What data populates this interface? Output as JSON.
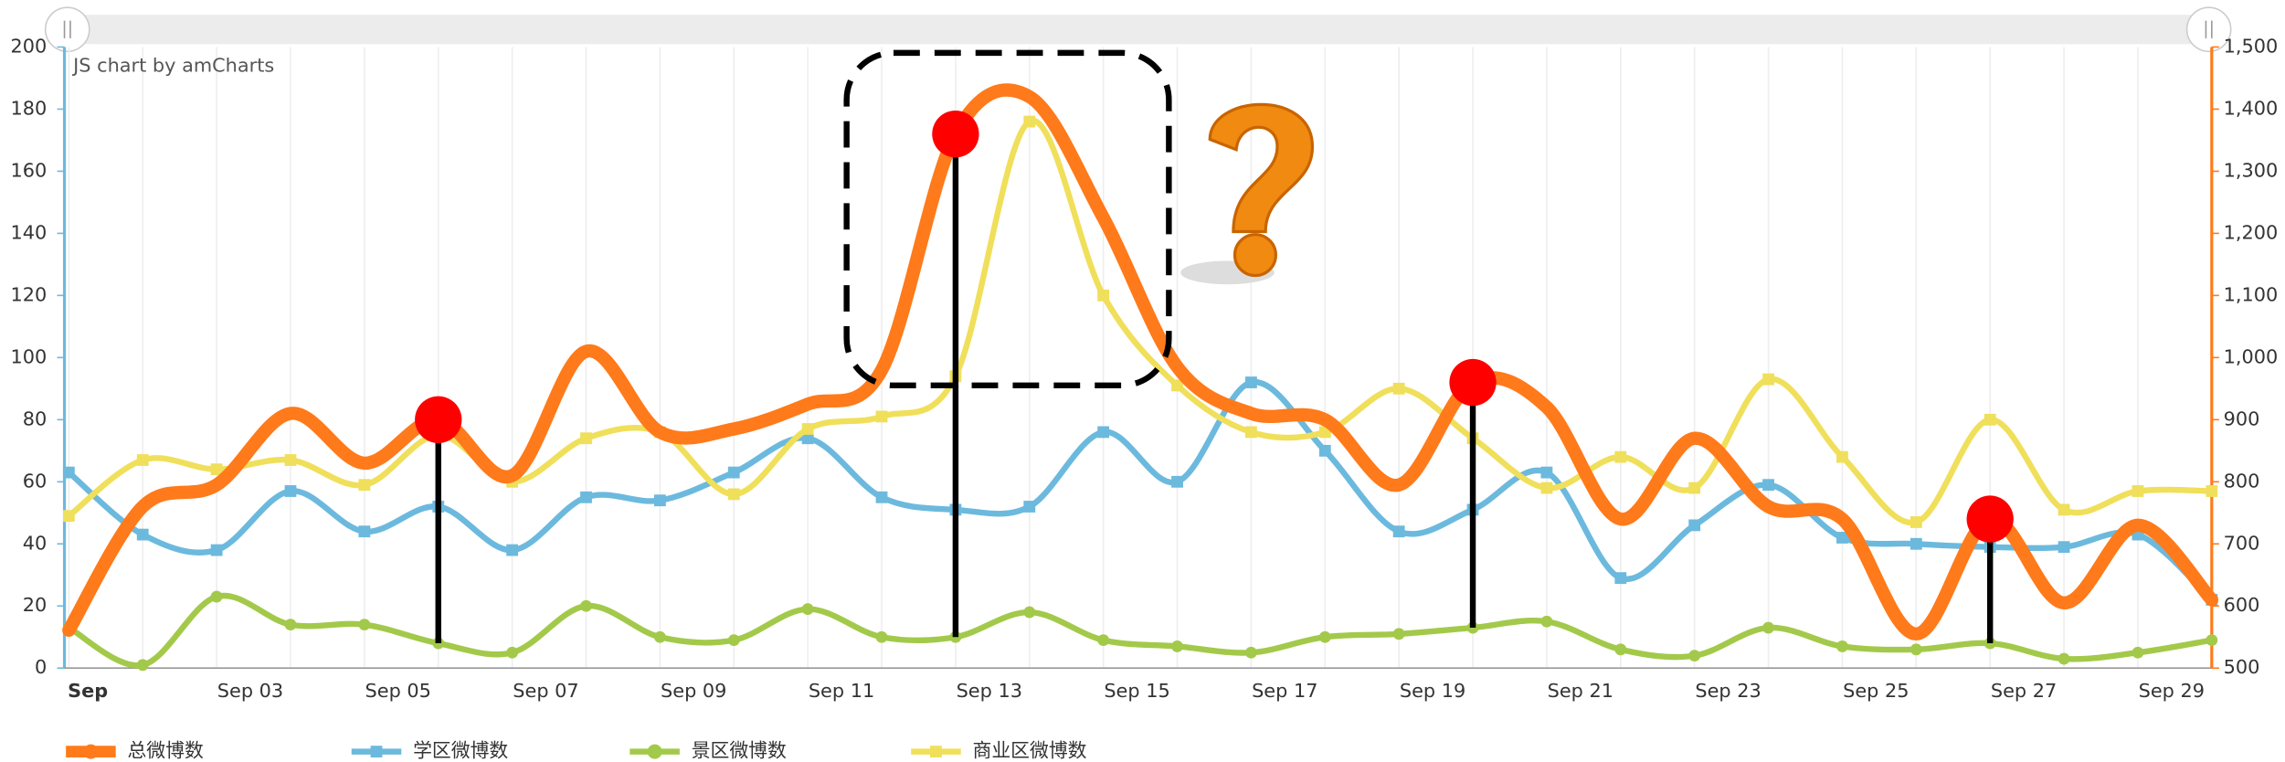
{
  "chart_data": {
    "type": "line",
    "credit": "JS chart by amCharts",
    "categories": [
      "Sep",
      null,
      "Sep 03",
      null,
      "Sep 05",
      null,
      "Sep 07",
      null,
      "Sep 09",
      null,
      "Sep 11",
      null,
      "Sep 13",
      null,
      "Sep 15",
      null,
      "Sep 17",
      null,
      "Sep 19",
      null,
      "Sep 21",
      null,
      "Sep 23",
      null,
      "Sep 25",
      null,
      "Sep 27",
      null,
      "Sep 29",
      null
    ],
    "series": [
      {
        "name": "总微博数",
        "color": "#ff7a1a",
        "axis": "y2",
        "values": [
          561,
          760,
          795,
          910,
          830,
          900,
          810,
          1010,
          880,
          885,
          925,
          980,
          1360,
          1420,
          1225,
          985,
          910,
          900,
          795,
          960,
          920,
          740,
          870,
          760,
          740,
          555,
          740,
          605,
          730,
          610
        ]
      },
      {
        "name": "学区微博数",
        "color": "#6cb9de",
        "values": [
          63,
          43,
          38,
          57,
          44,
          52,
          38,
          55,
          54,
          63,
          74,
          55,
          51,
          52,
          76,
          60,
          92,
          70,
          44,
          51,
          63,
          29,
          46,
          59,
          42,
          40,
          39,
          39,
          43,
          22
        ]
      },
      {
        "name": "景区微博数",
        "color": "#a3c94a",
        "values": [
          13,
          1,
          23,
          14,
          14,
          8,
          5,
          20,
          10,
          9,
          19,
          10,
          10,
          18,
          9,
          7,
          5,
          10,
          11,
          13,
          15,
          6,
          4,
          13,
          7,
          6,
          8,
          3,
          5,
          9
        ]
      },
      {
        "name": "商业区微博数",
        "color": "#f0df5a",
        "values": [
          49,
          67,
          64,
          67,
          59,
          75,
          60,
          74,
          76,
          56,
          77,
          81,
          94,
          176,
          120,
          91,
          76,
          76,
          90,
          74,
          58,
          68,
          58,
          93,
          68,
          47,
          80,
          51,
          57,
          57
        ]
      }
    ],
    "markers": [
      5,
      12,
      19,
      26
    ],
    "ylim": [
      0,
      200
    ],
    "yticks": [
      0,
      20,
      40,
      60,
      80,
      100,
      120,
      140,
      160,
      180,
      200
    ],
    "y2lim": [
      500,
      1500
    ],
    "y2ticks": [
      500,
      600,
      700,
      800,
      900,
      {
        "value": 1000,
        "label": "1,000"
      },
      {
        "value": 1100,
        "label": "1,100"
      },
      {
        "value": 1200,
        "label": "1,200"
      },
      {
        "value": 1300,
        "label": "1,300"
      },
      {
        "value": 1400,
        "label": "1,400"
      },
      {
        "value": 1500,
        "label": "1,500"
      }
    ],
    "grid": true
  }
}
